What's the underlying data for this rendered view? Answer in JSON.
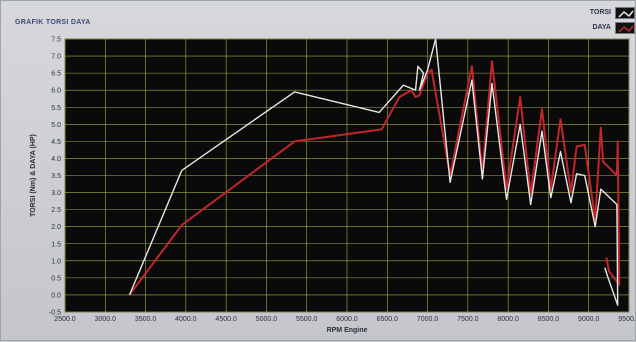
{
  "panel": {
    "title": "GRAFIK TORSI DAYA"
  },
  "legend": {
    "items": [
      {
        "label": "TORSI",
        "color": "#e6e6e6"
      },
      {
        "label": "DAYA",
        "color": "#c0262a"
      }
    ]
  },
  "colors": {
    "plot_background": "#0a0a0a",
    "grid": "#a9a94a"
  },
  "chart_data": {
    "type": "line",
    "xlabel": "RPM Engine",
    "ylabel": "TORSI (Nm) & DAYA (HP)",
    "xlim": [
      2500,
      9500
    ],
    "ylim": [
      -0.5,
      7.5
    ],
    "x_ticks": [
      "2500.0",
      "3000.0",
      "3500.0",
      "4000.0",
      "4500.0",
      "5000.0",
      "5500.0",
      "6000.0",
      "6500.0",
      "7000.0",
      "7500.0",
      "8000.0",
      "8500.0",
      "9000.0",
      "9500.0"
    ],
    "y_ticks": [
      "-0.5",
      "0.0",
      "0.5",
      "1.0",
      "1.5",
      "2.0",
      "2.5",
      "3.0",
      "3.5",
      "4.0",
      "4.5",
      "5.0",
      "5.5",
      "6.0",
      "6.5",
      "7.0",
      "7.5"
    ],
    "grid": true,
    "legend_position": "top-right",
    "series": [
      {
        "name": "TORSI",
        "color": "#e6e6e6",
        "points": [
          [
            3300,
            0.0
          ],
          [
            3950,
            3.65
          ],
          [
            5350,
            5.95
          ],
          [
            6400,
            5.35
          ],
          [
            6700,
            6.15
          ],
          [
            6850,
            6.0
          ],
          [
            6880,
            6.7
          ],
          [
            6950,
            6.5
          ],
          [
            6900,
            6.0
          ],
          [
            7000,
            6.6
          ],
          [
            7100,
            7.5
          ],
          [
            7280,
            3.3
          ],
          [
            7550,
            6.3
          ],
          [
            7680,
            3.4
          ],
          [
            7800,
            6.2
          ],
          [
            7980,
            2.8
          ],
          [
            8150,
            5.0
          ],
          [
            8280,
            2.65
          ],
          [
            8420,
            4.8
          ],
          [
            8530,
            2.85
          ],
          [
            8650,
            4.2
          ],
          [
            8780,
            2.7
          ],
          [
            8850,
            3.55
          ],
          [
            8950,
            3.5
          ],
          [
            9080,
            2.0
          ],
          [
            9150,
            3.1
          ],
          [
            9350,
            2.65
          ],
          [
            9360,
            -0.3
          ],
          [
            9240,
            0.5
          ],
          [
            9200,
            0.8
          ]
        ]
      },
      {
        "name": "DAYA",
        "color": "#c0262a",
        "points": [
          [
            3300,
            0.0
          ],
          [
            3950,
            2.05
          ],
          [
            5350,
            4.5
          ],
          [
            6430,
            4.85
          ],
          [
            6650,
            5.8
          ],
          [
            6800,
            6.0
          ],
          [
            6850,
            5.8
          ],
          [
            6900,
            5.85
          ],
          [
            7000,
            6.5
          ],
          [
            7050,
            6.6
          ],
          [
            7280,
            3.5
          ],
          [
            7550,
            6.7
          ],
          [
            7680,
            3.6
          ],
          [
            7800,
            6.85
          ],
          [
            7980,
            3.1
          ],
          [
            8150,
            5.8
          ],
          [
            8280,
            2.95
          ],
          [
            8420,
            5.45
          ],
          [
            8530,
            3.1
          ],
          [
            8650,
            5.15
          ],
          [
            8780,
            3.0
          ],
          [
            8850,
            4.35
          ],
          [
            8950,
            4.4
          ],
          [
            9080,
            2.2
          ],
          [
            9150,
            4.9
          ],
          [
            9180,
            3.9
          ],
          [
            9350,
            3.5
          ],
          [
            9360,
            4.5
          ],
          [
            9380,
            0.3
          ],
          [
            9250,
            0.7
          ],
          [
            9220,
            1.1
          ]
        ]
      }
    ]
  }
}
